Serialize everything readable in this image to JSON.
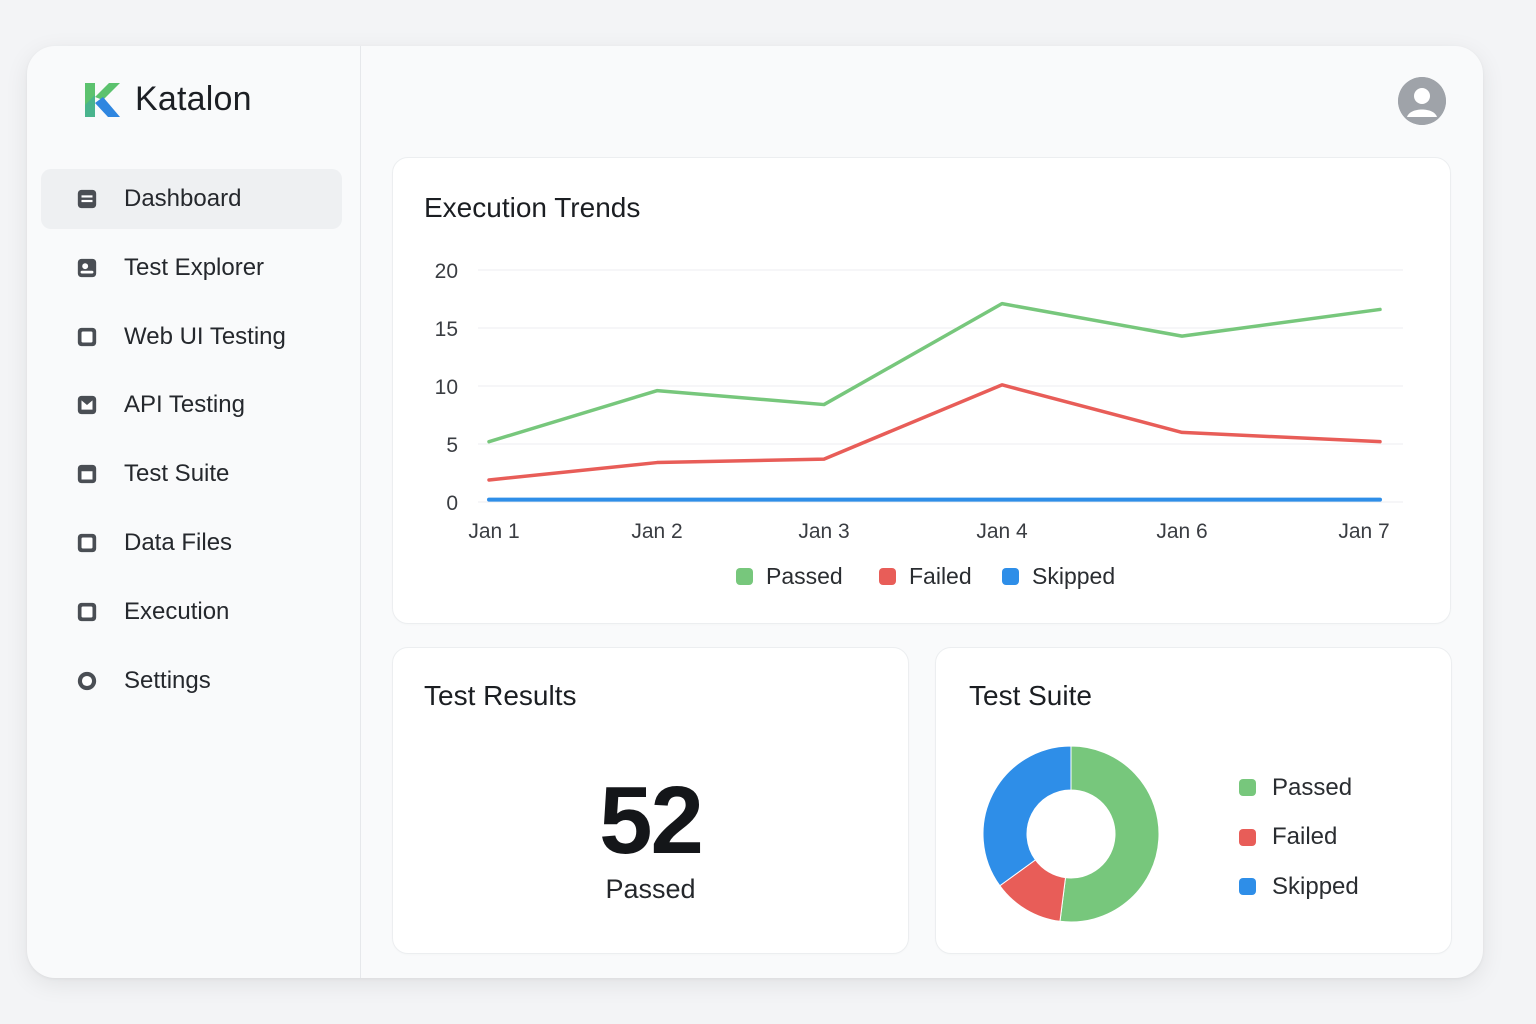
{
  "app": {
    "name": "Katalon"
  },
  "sidebar": {
    "items": [
      {
        "label": "Dashboard",
        "icon": "dashboard-icon",
        "active": true
      },
      {
        "label": "Test Explorer",
        "icon": "test-explorer-icon",
        "active": false
      },
      {
        "label": "Web UI Testing",
        "icon": "web-ui-icon",
        "active": false
      },
      {
        "label": "API Testing",
        "icon": "api-icon",
        "active": false
      },
      {
        "label": "Test Suite",
        "icon": "test-suite-icon",
        "active": false
      },
      {
        "label": "Data Files",
        "icon": "data-files-icon",
        "active": false
      },
      {
        "label": "Execution",
        "icon": "execution-icon",
        "active": false
      },
      {
        "label": "Settings",
        "icon": "settings-icon",
        "active": false
      }
    ]
  },
  "header": {
    "avatar_icon": "user-avatar-icon"
  },
  "colors": {
    "passed": "#77c77c",
    "failed": "#e85d58",
    "skipped": "#2e8ee8",
    "brand_green": "#5cc26e",
    "brand_blue": "#2f86e0"
  },
  "trends": {
    "title": "Execution Trends",
    "chart_data": {
      "type": "line",
      "categories": [
        "Jan 1",
        "Jan 2",
        "Jan 3",
        "Jan 4",
        "Jan 6",
        "Jan 7"
      ],
      "series": [
        {
          "name": "Passed",
          "values": [
            5.2,
            9.6,
            8.4,
            17.1,
            14.3,
            16.6
          ]
        },
        {
          "name": "Failed",
          "values": [
            1.9,
            3.4,
            3.7,
            10.1,
            6.0,
            5.2
          ]
        },
        {
          "name": "Skipped",
          "values": [
            0.2,
            0.2,
            0.2,
            0.2,
            0.2,
            0.2
          ]
        }
      ],
      "yticks": [
        "0",
        "5",
        "10",
        "15",
        "20"
      ],
      "ylim": [
        0,
        20
      ],
      "grid": true,
      "legend": "bottom"
    }
  },
  "results": {
    "title": "Test Results",
    "value": "52",
    "label": "Passed"
  },
  "suite": {
    "title": "Test Suite",
    "chart_data": {
      "type": "pie",
      "labels": [
        "Passed",
        "Failed",
        "Skipped"
      ],
      "values": [
        52,
        13,
        35
      ],
      "legend": "right"
    }
  }
}
